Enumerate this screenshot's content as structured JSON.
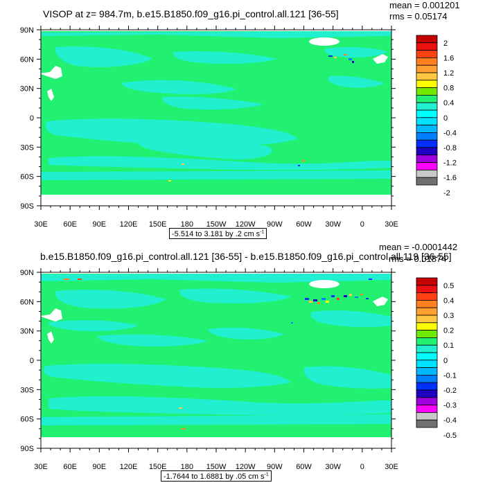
{
  "colors": {
    "ocean_zero": "#21f070",
    "ocean_neg": "#20f0d0",
    "land": "#ffffff",
    "frame": "#000000"
  },
  "panels": [
    {
      "title": "VISOP at z= 984.7m, b.e15.B1850.f09_g16.pi_control.all.121 [36-55]",
      "mean_text": "mean = 0.001201",
      "rms_text": "rms = 0.05174",
      "range_text": "-5.514 to 3.181 by .2 cm s",
      "range_sup": "-1",
      "colorbar_labels": [
        "2",
        "1.6",
        "1.2",
        "0.8",
        "0.4",
        "0",
        "-0.4",
        "-0.8",
        "-1.2",
        "-1.6",
        "-2"
      ],
      "colorbar_colors": [
        "#c40000",
        "#ec1010",
        "#ff4010",
        "#ff8020",
        "#ffa030",
        "#ffc840",
        "#ffff00",
        "#70e800",
        "#21f070",
        "#20f0d0",
        "#00ffff",
        "#00e0ff",
        "#00b8ff",
        "#0080ff",
        "#0030ff",
        "#2000c0",
        "#a000e0",
        "#ff00ff",
        "#c8c8c8",
        "#707070"
      ]
    },
    {
      "title": "b.e15.B1850.f09_g16.pi_control.all.121 [36-55] - b.e15.B1850.f09_g16.pi_control.all.119 [36-55]",
      "mean_text": "mean = -0.0001442",
      "rms_text": "rms = 0.01874",
      "range_text": "-1.7644 to 1.6881 by .05 cm s",
      "range_sup": "-1",
      "colorbar_labels": [
        "0.5",
        "0.4",
        "0.3",
        "0.2",
        "0.1",
        "0",
        "-0.1",
        "-0.2",
        "-0.3",
        "-0.4",
        "-0.5"
      ],
      "colorbar_colors": [
        "#c40000",
        "#ec1010",
        "#ff4010",
        "#ff8020",
        "#ffa030",
        "#ffc840",
        "#ffff00",
        "#70e800",
        "#21f070",
        "#20f0d0",
        "#00ffff",
        "#00e0ff",
        "#00b8ff",
        "#0080ff",
        "#0030ff",
        "#2000c0",
        "#a000e0",
        "#ff00ff",
        "#c8c8c8",
        "#707070"
      ]
    }
  ],
  "lat_labels": [
    "90N",
    "60N",
    "30N",
    "0",
    "30S",
    "60S",
    "90S"
  ],
  "lon_labels": [
    "30E",
    "60E",
    "90E",
    "120E",
    "150E",
    "180",
    "150W",
    "120W",
    "90W",
    "60W",
    "30W",
    "0",
    "30E"
  ],
  "chart_data": [
    {
      "type": "heatmap",
      "title": "VISOP at z= 984.7m, b.e15.B1850.f09_g16.pi_control.all.121 [36-55]",
      "annotations": [
        "mean = 0.001201",
        "rms = 0.05174"
      ],
      "contour_range": "-5.514 to 3.181 by .2 cm s-1",
      "x_ticks": [
        "30E",
        "60E",
        "90E",
        "120E",
        "150E",
        "180",
        "150W",
        "120W",
        "90W",
        "60W",
        "30W",
        "0",
        "30E"
      ],
      "y_ticks": [
        "90N",
        "60N",
        "30N",
        "0",
        "30S",
        "60S",
        "90S"
      ],
      "colorbar": [
        2,
        1.6,
        1.2,
        0.8,
        0.4,
        0,
        -0.4,
        -0.8,
        -1.2,
        -1.6,
        -2
      ]
    },
    {
      "type": "heatmap",
      "title": "b.e15.B1850.f09_g16.pi_control.all.121 [36-55] - b.e15.B1850.f09_g16.pi_control.all.119 [36-55]",
      "annotations": [
        "mean = -0.0001442",
        "rms = 0.01874"
      ],
      "contour_range": "-1.7644 to 1.6881 by .05 cm s-1",
      "x_ticks": [
        "30E",
        "60E",
        "90E",
        "120E",
        "150E",
        "180",
        "150W",
        "120W",
        "90W",
        "60W",
        "30W",
        "0",
        "30E"
      ],
      "y_ticks": [
        "90N",
        "60N",
        "30N",
        "0",
        "30S",
        "60S",
        "90S"
      ],
      "colorbar": [
        0.5,
        0.4,
        0.3,
        0.2,
        0.1,
        0,
        -0.1,
        -0.2,
        -0.3,
        -0.4,
        -0.5
      ]
    }
  ]
}
